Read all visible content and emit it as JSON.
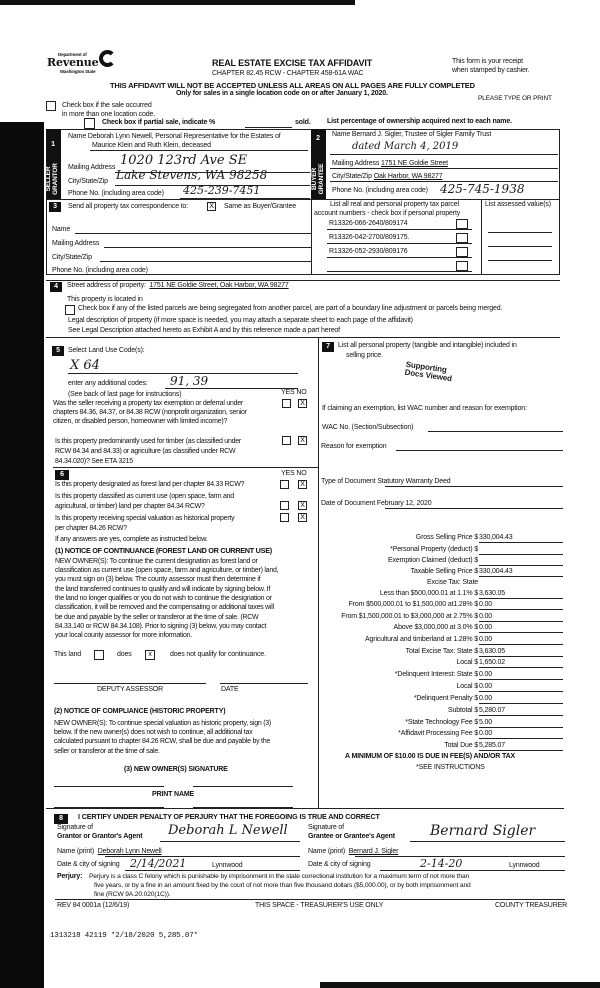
{
  "header": {
    "agency_line1": "Department of",
    "agency_line2": "Revenue",
    "agency_line3": "Washington State",
    "title": "REAL ESTATE EXCISE TAX AFFIDAVIT",
    "subtitle": "CHAPTER 82.45 RCW - CHAPTER 458-61A WAC",
    "receipt_note1": "This form is your receipt",
    "receipt_note2": "when stamped by cashier.",
    "warning": "THIS AFFIDAVIT WILL NOT BE ACCEPTED UNLESS ALL AREAS ON ALL PAGES ARE FULLY COMPLETED",
    "only_for": "Only for sales in a single location code on or after January 1, 2020.",
    "type_or_print": "PLEASE TYPE OR PRINT",
    "multi_location_1": "Check box if the sale occurred",
    "multi_location_2": "in more than one location code.",
    "partial_sale": "Check box if partial sale, indicate %",
    "sold": "sold.",
    "list_pct": "List percentage of ownership acquired next to each name."
  },
  "seller": {
    "num": "1",
    "side_label1": "SELLER",
    "side_label2": "GRANTOR",
    "name_label": "Name",
    "name": "Deborah Lynn Newell, Personal Representative for the Estates of",
    "name2": "Maurice Klein and Ruth Klein, deceased",
    "mailing_label": "Mailing Address",
    "mailing": "1020 123rd Ave SE",
    "city_label": "City/State/Zip",
    "city": "Lake Stevens, WA 98258",
    "phone_label": "Phone No. (including area code)",
    "phone": "425-239-7451"
  },
  "buyer": {
    "num": "2",
    "side_label1": "BUYER",
    "side_label2": "GRANTEE",
    "name_label": "Name",
    "name": "Bernard J. Sigler, Trustee of Sigler Family Trust",
    "name2": "dated March 4, 2019",
    "mailing_label": "Mailing Address",
    "mailing": "1751 NE Goldie Street",
    "city_label": "City/State/Zip",
    "city": "Oak Harbor, WA 98277",
    "phone_label": "Phone No. (including area code)",
    "phone": "425-745-1938"
  },
  "correspondence": {
    "num": "3",
    "label": "Send all property tax correspondence to:",
    "checked": "X",
    "same_as": "Same as Buyer/Grantee",
    "name_label": "Name",
    "mailing_label": "Mailing Address",
    "city_label": "City/State/Zip",
    "phone_label": "Phone No. (including area code)"
  },
  "parcels": {
    "header1": "List all real and personal property tax parcel",
    "header2": "account numbers - check box if personal property",
    "assessed_header": "List assessed value(s)",
    "items": [
      "R13326-066-2640/809174",
      "R13326-042-2700/809175.",
      "R13326-052-2930/809176"
    ]
  },
  "property": {
    "num": "4",
    "street_label": "Street address of property:",
    "street": "1751 NE Goldie Street, Oak Harbor, WA 98277",
    "located_in": "This property is located in",
    "segregated": "Check box if any of the listed parcels are being segregated from another parcel, are part of a boundary line adjustment or parcels being merged.",
    "legal_label": "Legal description of property (if more space is needed, you may attach a separate sheet to each page of the affidavit)",
    "legal": "See Legal Description attached hereto as Exhibit A and by this reference made a part hereof"
  },
  "land_use": {
    "num": "5",
    "label": "Select Land Use Code(s):",
    "code": "X 64",
    "additional_label": "enter any additional codes:",
    "additional": "91, 39",
    "see_back": "(See back of last page for instructions)",
    "yes": "YES",
    "no": "NO",
    "q1": [
      "Was the seller receiving a property tax exemption or deferral under",
      "chapters 84.36, 84.37, or 84.38 RCW (nonprofit organization, senior",
      "citizen, or disabled person, homeowner with limited income)?"
    ],
    "q1_answer": "X",
    "q2": [
      "Is this property predominantly used for timber (as classified under",
      "RCW 84.34 and 84.33) or agriculture (as classified under RCW",
      "84.34.020)? See ETA 3215"
    ],
    "q2_answer": "X"
  },
  "section6": {
    "num": "6",
    "yes": "YES",
    "no": "NO",
    "q1": "Is this property designated as forest land per chapter 84.33 RCW?",
    "q2": [
      "Is this property classified as current use (open space, farm and",
      "agricultural, or timber) land per chapter 84.34 RCW?"
    ],
    "q3": [
      "Is this property receiving special valuation as historical property",
      "per chapter 84.26 RCW?"
    ],
    "answer": "X",
    "if_yes": "If any answers are yes, complete as instructed below.",
    "notice1_title": "(1) NOTICE OF CONTINUANCE (FOREST LAND OR CURRENT USE)",
    "notice1": [
      "NEW OWNER(S): To continue the current designation as forest land or",
      "classification as current use (open space, farm and agriculture, or timber) land,",
      "you must sign on (3) below. The county assessor must then determine if",
      "the land transferred continues to qualify and will indicate by signing below. If",
      "the land no longer qualifies or you do not wish to continue the designation or",
      "classification, it will be removed and the compensating or additional taxes will",
      "be due and payable by the seller or transferor at the time of sale. (RCW",
      "84.33.140 or RCW 84.34.108). Prior to signing (3) below, you may contact",
      "your local county assessor for more information."
    ],
    "this_land": "This land",
    "does": "does",
    "does_not": "does not qualify for continuance.",
    "does_not_checked": "x",
    "deputy": "DEPUTY ASSESSOR",
    "date": "DATE",
    "notice2_title": "(2) NOTICE OF COMPLIANCE (HISTORIC PROPERTY)",
    "notice2": [
      "NEW OWNER(S): To continue special valuation as historic property, sign (3)",
      "below. If the new owner(s) does not wish to continue, all additional tax",
      "calculated pursuant to chapter 84.26 RCW, shall be due and payable by the",
      "seller or transferor at the time of sale."
    ],
    "new_owner_sig": "(3) NEW OWNER(S) SIGNATURE",
    "print_name": "PRINT NAME"
  },
  "section7": {
    "num": "7",
    "label1": "List all personal property (tangible and intangible) included in",
    "label2": "selling price.",
    "stamp1": "Supporting",
    "stamp2": "Docs Viewed",
    "exemption_label": "If claiming an exemption, list WAC number and reason for exemption:",
    "wac_label": "WAC No. (Section/Subsection)",
    "reason_label": "Reason for exemption",
    "doc_type_label": "Type of Document",
    "doc_type": "Statutory Warranty Deed",
    "doc_date_label": "Date of Document",
    "doc_date": "February 12, 2020",
    "rows": [
      {
        "label": "Gross Selling Price $",
        "value": "330,004.43"
      },
      {
        "label": "*Personal Property (deduct) $",
        "value": ""
      },
      {
        "label": "Exemption Claimed (deduct) $",
        "value": ""
      },
      {
        "label": "Taxable Selling Price $",
        "value": "330,004.43"
      },
      {
        "label": "Excise Tax: State",
        "value": ""
      },
      {
        "label": "Less than $500,000.01 at 1.1% $",
        "value": "3,630.05"
      },
      {
        "label": "From $500,000.01 to $1,500,000 at1.28% $",
        "value": "0.00"
      },
      {
        "label": "From $1,500,000.01 to $3,000,000 at 2.75% $",
        "value": "0.00"
      },
      {
        "label": "Above $3,000,000 at 3.0% $",
        "value": "0.00"
      },
      {
        "label": "Agricultural and timberland at 1.28% $",
        "value": "0.00"
      },
      {
        "label": "Total Excise Tax: State $",
        "value": "3,630.05"
      },
      {
        "label": "Local $",
        "value": "1,650.02"
      },
      {
        "label": "*Delinquent Interest: State $",
        "value": "0.00"
      },
      {
        "label": "Local $",
        "value": "0.00"
      },
      {
        "label": "*Delinquent Penalty $",
        "value": "0.00"
      },
      {
        "label": "Subtotal $",
        "value": "5,280.07"
      },
      {
        "label": "*State Technology Fee $",
        "value": "5.00"
      },
      {
        "label": "*Affidavit Processing Fee $",
        "value": "0.00"
      },
      {
        "label": "Total Due $",
        "value": "5,285.07"
      }
    ],
    "minimum": "A MINIMUM OF $10.00 IS DUE IN FEE(S) AND/OR TAX",
    "see_instructions": "*SEE INSTRUCTIONS"
  },
  "section8": {
    "num": "8",
    "certify": "I CERTIFY UNDER PENALTY OF PERJURY THAT THE FOREGOING IS TRUE AND CORRECT",
    "sig_of": "Signature of",
    "grantor_agent": "Grantor or Grantor's Agent",
    "grantor_signature": "Deborah L Newell",
    "grantee_agent": "Grantee or Grantee's Agent",
    "grantee_signature": "Bernard Sigler",
    "name_print_label": "Name (print)",
    "grantor_name": "Deborah Lynn Newell",
    "grantee_name": "Bernard J. Sigler",
    "date_city_label": "Date & city of signing",
    "grantor_date": "2/14/2021",
    "grantor_city": "Lynnwood",
    "grantee_date": "2-14-20",
    "grantee_city": "Lynnwood",
    "perjury_label": "Perjury:",
    "perjury": [
      "Perjury is a class C felony which is punishable by imprisonment in the state correctional institution for a maximum term of not more than",
      "five years, or by a fine in an amount fixed by the court of not more than five thousand dollars ($5,000.00), or by both imprisonment and",
      "fine (RCW 9A.20.020(1C))."
    ]
  },
  "footer": {
    "form_id": "REV 84 0001a (12/6/19)",
    "treasurer_use": "THIS SPACE - TREASURER'S USE ONLY",
    "county_treasurer": "COUNTY TREASURER",
    "receipt_stamp": "1313218 42119 *2/18/2020 5,285.07*"
  }
}
